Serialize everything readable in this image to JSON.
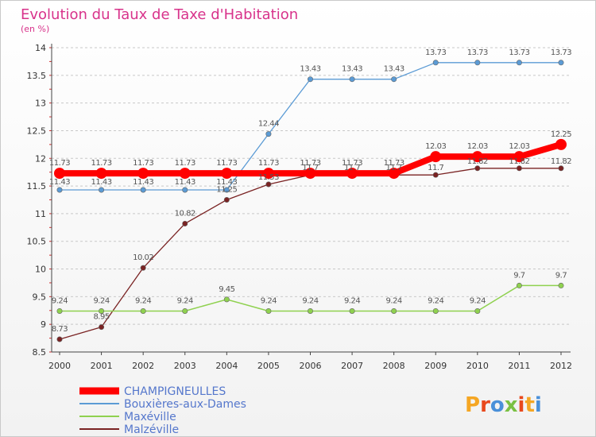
{
  "chart_data": {
    "type": "line",
    "title": "Evolution du Taux de Taxe d'Habitation",
    "ylabel": "(en %)",
    "xlabel": "",
    "x": [
      2000,
      2001,
      2002,
      2003,
      2004,
      2005,
      2006,
      2007,
      2008,
      2009,
      2010,
      2011,
      2012
    ],
    "ylim": [
      8.5,
      14
    ],
    "yticks": [
      8.5,
      9,
      9.5,
      10,
      10.5,
      11,
      11.5,
      12,
      12.5,
      13,
      13.5,
      14
    ],
    "ytick_labels": [
      "8.5",
      "9",
      "9.5",
      "10",
      "10.5",
      "11",
      "11.5",
      "12",
      "12.5",
      "13",
      "13.5",
      "14"
    ],
    "grid": "horizontal dashed",
    "legend_position": "bottom-left",
    "series": [
      {
        "name": "CHAMPIGNEULLES",
        "color": "#ff0000",
        "values": [
          11.73,
          11.73,
          11.73,
          11.73,
          11.73,
          11.73,
          11.73,
          11.73,
          11.73,
          12.03,
          12.03,
          12.03,
          12.25
        ],
        "labels": [
          "11.73",
          "11.73",
          "11.73",
          "11.73",
          "11.73",
          "11.73",
          "11.73",
          "11.73",
          "11.73",
          "12.03",
          "12.03",
          "12.03",
          "12.25"
        ]
      },
      {
        "name": "Bouxières-aux-Dames",
        "color": "#5b9bd5",
        "values": [
          11.43,
          11.43,
          11.43,
          11.43,
          11.43,
          12.44,
          13.43,
          13.43,
          13.43,
          13.73,
          13.73,
          13.73,
          13.73
        ],
        "labels": [
          "11.43",
          "11.43",
          "11.43",
          "11.43",
          "11.43",
          "12.44",
          "13.43",
          "13.43",
          "13.43",
          "13.73",
          "13.73",
          "13.73",
          "13.73"
        ]
      },
      {
        "name": "Maxéville",
        "color": "#8fd14f",
        "values": [
          9.24,
          9.24,
          9.24,
          9.24,
          9.45,
          9.24,
          9.24,
          9.24,
          9.24,
          9.24,
          9.24,
          9.7,
          9.7
        ],
        "labels": [
          "9.24",
          "9.24",
          "9.24",
          "9.24",
          "9.45",
          "9.24",
          "9.24",
          "9.24",
          "9.24",
          "9.24",
          "9.24",
          "9.7",
          "9.7"
        ]
      },
      {
        "name": "Malzéville",
        "color": "#7a2323",
        "values": [
          8.73,
          8.95,
          10.02,
          10.82,
          11.25,
          11.53,
          11.7,
          11.7,
          11.7,
          11.7,
          11.82,
          11.82,
          11.82
        ],
        "labels": [
          "8.73",
          "8.95",
          "10.02",
          "10.82",
          "11.25",
          "11.53",
          "11.7",
          "11.7",
          "11.7",
          "11.7",
          "11.82",
          "11.82",
          "11.82"
        ]
      }
    ]
  },
  "brand": {
    "letters": [
      "P",
      "r",
      "o",
      "x",
      "i",
      "t",
      "i"
    ],
    "colors": [
      "#f5a623",
      "#e8491d",
      "#4a90d9",
      "#7ac143",
      "#e8491d",
      "#f5a623",
      "#4a90d9"
    ]
  }
}
